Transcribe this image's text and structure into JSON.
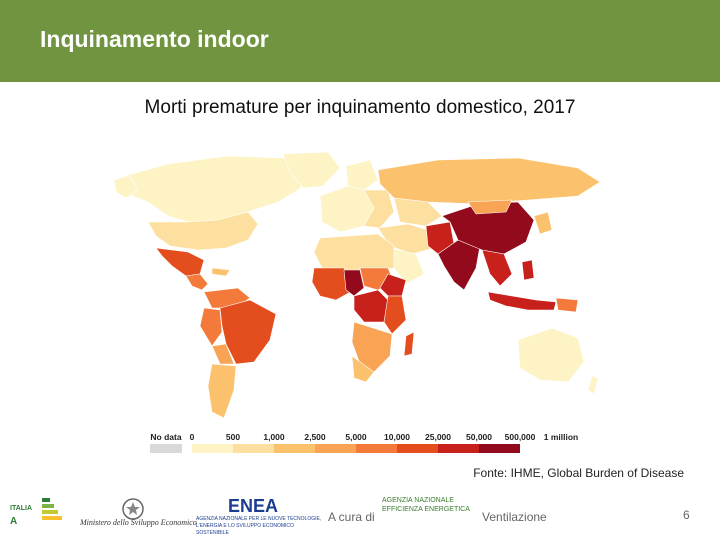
{
  "header": {
    "title": "Inquinamento indoor"
  },
  "map": {
    "title": "Morti premature per inquinamento domestico, 2017",
    "legend": {
      "nodata_label": "No data",
      "ticks": [
        "0",
        "500",
        "1,000",
        "2,500",
        "5,000",
        "10,000",
        "25,000",
        "50,000",
        "500,000",
        "1 million"
      ],
      "colors": [
        "#fdf3c4",
        "#fde0a0",
        "#fcc16d",
        "#f9a355",
        "#f37a3a",
        "#e44e1f",
        "#c8201b",
        "#920a1c"
      ],
      "nodata_color": "#d9d9d9"
    },
    "source": "Fonte: IHME, Global Burden of Disease"
  },
  "footer": {
    "italia_logo": "ITALIA IN CLASSE A",
    "ministero": "Ministero dello Sviluppo Economico",
    "enea_logo": "ENEA",
    "enea_sub": "AGENZIA NAZIONALE PER LE NUOVE TECNOLOGIE, L'ENERGIA E LO SVILUPPO ECONOMICO SOSTENIBILE",
    "acura": "A cura di",
    "agenzia": "AGENZIA NAZIONALE EFFICIENZA ENERGETICA",
    "section": "Ventilazione",
    "page": "6"
  }
}
